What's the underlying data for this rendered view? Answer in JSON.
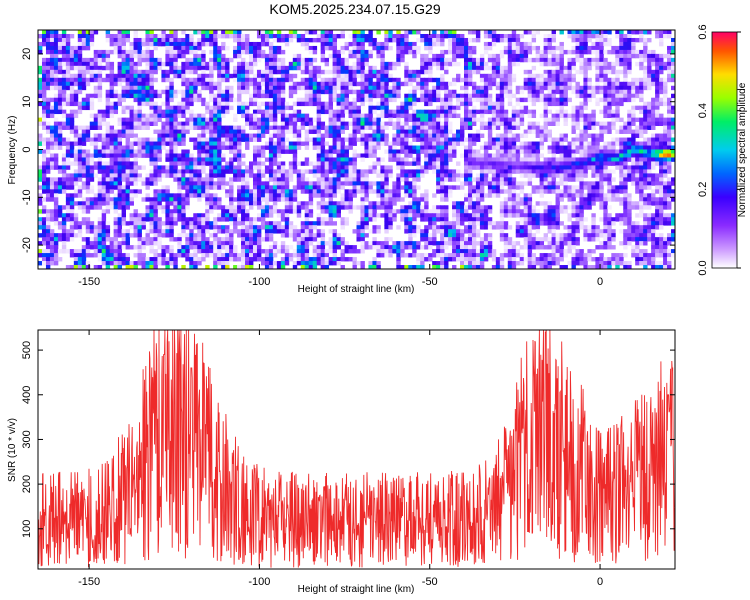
{
  "chart_data": [
    {
      "type": "heatmap",
      "title": "KOM5.2025.234.07.15.G29",
      "xlabel": "Height of straight line (km)",
      "ylabel": "Frequency (Hz)",
      "xlim": [
        -165,
        22
      ],
      "ylim": [
        -25,
        25
      ],
      "x_ticks": [
        -150,
        -100,
        -50,
        0
      ],
      "y_ticks": [
        -20,
        -10,
        0,
        10,
        20
      ],
      "colorbar": {
        "label": "Normalized spectral amplitude",
        "range": [
          0.0,
          0.6
        ],
        "ticks": [
          0.0,
          0.2,
          0.4,
          0.6
        ],
        "colors": [
          "#ffffff",
          "#cc99ff",
          "#7a1fff",
          "#3a00ff",
          "#0033ff",
          "#00ccff",
          "#00ff66",
          "#ccff00",
          "#ffcc00",
          "#ff3300",
          "#ff0066"
        ]
      },
      "signal_track": [
        {
          "x": -40,
          "f": -2.5,
          "v": 0.17
        },
        {
          "x": -25,
          "f": -3.5,
          "v": 0.18
        },
        {
          "x": -15,
          "f": -4,
          "v": 0.22
        },
        {
          "x": -5,
          "f": -3,
          "v": 0.27
        },
        {
          "x": 0,
          "f": -1.5,
          "v": 0.3
        },
        {
          "x": 5,
          "f": -2,
          "v": 0.34
        },
        {
          "x": 10,
          "f": 0,
          "v": 0.42
        },
        {
          "x": 15,
          "f": -1,
          "v": 0.36
        },
        {
          "x": 19,
          "f": -1,
          "v": 0.58
        }
      ]
    },
    {
      "type": "line",
      "xlabel": "Height of straight line (km)",
      "ylabel": "SNR (10 * v/v)",
      "xlim": [
        -165,
        22
      ],
      "ylim": [
        10,
        545
      ],
      "x_ticks": [
        -150,
        -100,
        -50,
        0
      ],
      "y_ticks": [
        100,
        200,
        300,
        400,
        500
      ],
      "series": [
        {
          "name": "SNR",
          "color": "#ee2a2a",
          "baseline": 120,
          "peaks": [
            {
              "x": -128,
              "y": 490
            },
            {
              "x": -120,
              "y": 460
            },
            {
              "x": -16,
              "y": 540
            },
            {
              "x": 20,
              "y": 400
            }
          ]
        }
      ]
    }
  ]
}
